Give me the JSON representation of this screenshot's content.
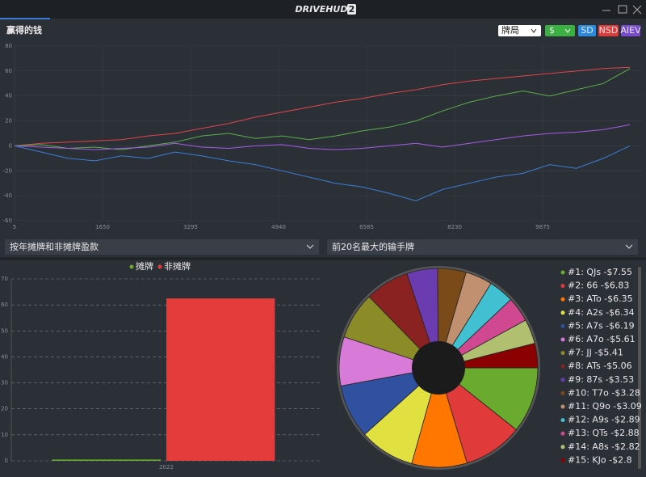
{
  "window": {
    "logo": "DRIVEHUD",
    "logo_badge": "2"
  },
  "header": {
    "title": "赢得的钱",
    "select_game": "牌局",
    "select_currency": "$",
    "buttons": [
      "SD",
      "NSD",
      "AIEV"
    ]
  },
  "dropdowns": [
    "按年摊牌和非摊牌盈款",
    "前20名最大的输手牌"
  ],
  "chart_data": [
    {
      "type": "line",
      "x": [
        5,
        505,
        1005,
        1505,
        2005,
        2505,
        3005,
        3505,
        4005,
        4505,
        5005,
        5505,
        6005,
        6505,
        7005,
        7505,
        8005,
        8505,
        9005,
        9505,
        10005,
        10505,
        11005,
        11505
      ],
      "series": [
        {
          "name": "red",
          "color": "#e0454b",
          "values": [
            0,
            2,
            3,
            4,
            5,
            8,
            10,
            14,
            18,
            23,
            27,
            31,
            35,
            38,
            42,
            45,
            49,
            52,
            54,
            56,
            58,
            60,
            62,
            63
          ]
        },
        {
          "name": "green",
          "color": "#5bb04a",
          "values": [
            0,
            1,
            -2,
            -1,
            -3,
            0,
            3,
            8,
            10,
            6,
            8,
            5,
            8,
            12,
            15,
            20,
            28,
            35,
            40,
            44,
            40,
            45,
            50,
            62
          ]
        },
        {
          "name": "purple",
          "color": "#a45de8",
          "values": [
            0,
            -1,
            -2,
            -3,
            -2,
            -1,
            2,
            -1,
            -2,
            0,
            1,
            -2,
            -3,
            -2,
            0,
            2,
            -1,
            2,
            5,
            8,
            10,
            11,
            13,
            17
          ]
        },
        {
          "name": "blue",
          "color": "#3a7fd8",
          "values": [
            0,
            -5,
            -10,
            -12,
            -8,
            -10,
            -5,
            -8,
            -12,
            -15,
            -20,
            -25,
            -30,
            -33,
            -38,
            -44,
            -35,
            -30,
            -25,
            -22,
            -15,
            -18,
            -10,
            0
          ]
        }
      ],
      "xlim": [
        5,
        11730
      ],
      "xticks": [
        5,
        1650,
        3295,
        4940,
        6585,
        8230,
        9875
      ],
      "ylim": [
        -60,
        80
      ],
      "yticks": [
        -60,
        -40,
        -20,
        0,
        20,
        40,
        60,
        80
      ],
      "grid": true
    },
    {
      "type": "bar",
      "categories": [
        "2022"
      ],
      "series": [
        {
          "name": "摊牌",
          "color": "#6aaa2e",
          "values": [
            0.5
          ]
        },
        {
          "name": "非摊牌",
          "color": "#e43b3b",
          "values": [
            62.5
          ]
        }
      ],
      "ylim": [
        0,
        70
      ],
      "yticks": [
        0,
        10,
        20,
        30,
        40,
        50,
        60,
        70
      ],
      "grid": true,
      "legend": "top"
    },
    {
      "type": "pie",
      "donut": true,
      "values": [
        -7.55,
        -6.83,
        -6.35,
        -6.34,
        -6.19,
        -5.61,
        -5.41,
        -5.06,
        -3.53,
        -3.28,
        -3.09,
        -2.89,
        -2.88,
        -2.82,
        -2.8
      ],
      "value_labels": [
        "#1: QJs -$7.55",
        "#2: 66 -$6.83",
        "#3: ATo -$6.35",
        "#4: A2s -$6.34",
        "#5: A7s -$6.19",
        "#6: A7o -$5.61",
        "#7: JJ -$5.41",
        "#8: ATs -$5.06",
        "#9: 87s -$3.53",
        "#10: T7o -$3.28",
        "#11: Q9o -$3.09",
        "#12: A9s -$2.89",
        "#13: QTs -$2.88",
        "#14: A8s -$2.82",
        "#15: KJo -$2.8"
      ],
      "colors": [
        "#6aaa2e",
        "#e03a3a",
        "#ff7700",
        "#e0e040",
        "#3050a0",
        "#d87ad8",
        "#8b8b28",
        "#8b2222",
        "#6a3cb0",
        "#7a4a18",
        "#c09070",
        "#40c0d0",
        "#d04890",
        "#b0c070",
        "#8b0000"
      ],
      "legend": "right"
    }
  ]
}
